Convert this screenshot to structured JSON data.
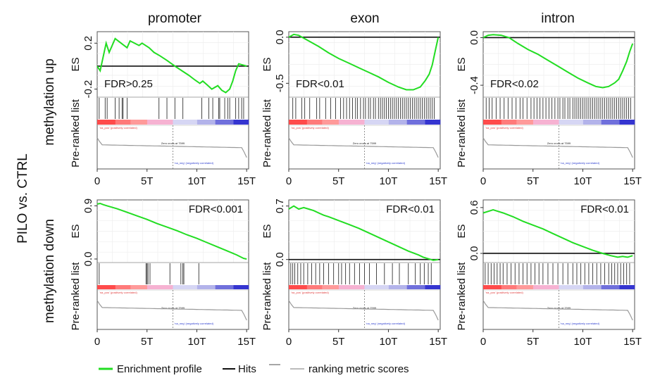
{
  "chart_data": {
    "type": "line",
    "left_label": "PILO vs. CTRL",
    "columns": [
      "promoter",
      "exon",
      "intron"
    ],
    "rows": [
      "methylation up",
      "methylation down"
    ],
    "es_label": "ES",
    "ranked_label": "Pre-ranked list",
    "pos_label": "'na_pos' (positively correlated)",
    "neg_label": "'na_neg' (negatively correlated)",
    "zero_cross_label": "Zero cross at 7599",
    "zero_cross": 7599,
    "x_ticks": [
      "0",
      "5T",
      "10T",
      "15T"
    ],
    "x_tick_values": [
      0,
      5000,
      10000,
      15000
    ],
    "xlim": [
      0,
      15200
    ],
    "legend": [
      "Enrichment profile",
      "Hits",
      "ranking metric scores"
    ],
    "colors": {
      "profile": "#22dd22",
      "hits": "#111111",
      "metric": "#bbbbbb"
    },
    "panels": [
      {
        "row": 0,
        "col": 0,
        "fdr": "FDR>0.25",
        "fdr_pos": "bottom-left",
        "ylim": [
          -0.27,
          0.3
        ],
        "yticks": [
          0.2,
          -0.2
        ],
        "ytick_labels": [
          "0.2",
          "-0.2"
        ],
        "zero_line": true,
        "es": [
          [
            0,
            0.0
          ],
          [
            300,
            -0.04
          ],
          [
            900,
            0.2
          ],
          [
            1200,
            0.12
          ],
          [
            1800,
            0.24
          ],
          [
            2400,
            0.2
          ],
          [
            3000,
            0.16
          ],
          [
            3300,
            0.22
          ],
          [
            4200,
            0.18
          ],
          [
            4500,
            0.2
          ],
          [
            5200,
            0.16
          ],
          [
            5700,
            0.12
          ],
          [
            6300,
            0.09
          ],
          [
            7000,
            0.05
          ],
          [
            7800,
            0.0
          ],
          [
            8500,
            -0.04
          ],
          [
            9200,
            -0.08
          ],
          [
            9800,
            -0.12
          ],
          [
            10300,
            -0.15
          ],
          [
            10600,
            -0.13
          ],
          [
            11000,
            -0.16
          ],
          [
            11500,
            -0.2
          ],
          [
            12100,
            -0.17
          ],
          [
            12500,
            -0.21
          ],
          [
            12900,
            -0.23
          ],
          [
            13300,
            -0.2
          ],
          [
            13600,
            -0.13
          ],
          [
            13900,
            -0.04
          ],
          [
            14200,
            0.02
          ],
          [
            15000,
            0.0
          ]
        ],
        "hits": [
          200,
          800,
          1000,
          1800,
          2200,
          2500,
          2600,
          3000,
          6200,
          7000,
          7800,
          8600,
          10500,
          11200,
          11600,
          12200,
          12300,
          12800,
          13100,
          13300,
          13900,
          14200,
          14500,
          14700
        ]
      },
      {
        "row": 0,
        "col": 1,
        "fdr": "FDR<0.01",
        "fdr_pos": "bottom-left",
        "ylim": [
          -0.65,
          0.06
        ],
        "yticks": [
          0.0,
          -0.5
        ],
        "ytick_labels": [
          "0.0",
          "-0.5"
        ],
        "zero_line": true,
        "es": [
          [
            0,
            0.0
          ],
          [
            500,
            0.03
          ],
          [
            1000,
            0.02
          ],
          [
            2000,
            -0.04
          ],
          [
            3000,
            -0.1
          ],
          [
            4000,
            -0.17
          ],
          [
            5000,
            -0.23
          ],
          [
            6000,
            -0.28
          ],
          [
            7000,
            -0.33
          ],
          [
            8000,
            -0.38
          ],
          [
            9000,
            -0.43
          ],
          [
            10000,
            -0.49
          ],
          [
            11000,
            -0.54
          ],
          [
            11800,
            -0.57
          ],
          [
            12500,
            -0.57
          ],
          [
            13200,
            -0.54
          ],
          [
            13700,
            -0.47
          ],
          [
            14100,
            -0.4
          ],
          [
            14400,
            -0.3
          ],
          [
            14700,
            -0.15
          ],
          [
            15000,
            0.0
          ]
        ],
        "hits": [
          400,
          700,
          1300,
          1600,
          2100,
          2800,
          3100,
          3700,
          4200,
          4700,
          5200,
          5500,
          5800,
          6100,
          6400,
          6700,
          6900,
          7200,
          7500,
          7700,
          8000,
          8200,
          8500,
          8700,
          9000,
          9200,
          9400,
          9600,
          9800,
          10000,
          10200,
          10400,
          10600,
          10800,
          11000,
          11200,
          11400,
          11600,
          11800,
          12000,
          12200,
          12400,
          12600,
          12800,
          13000,
          13200,
          13400,
          13600,
          13800,
          14000,
          14200,
          14400,
          14600
        ]
      },
      {
        "row": 0,
        "col": 2,
        "fdr": "FDR<0.02",
        "fdr_pos": "bottom-left",
        "ylim": [
          -0.5,
          0.05
        ],
        "yticks": [
          0.0,
          -0.4
        ],
        "ytick_labels": [
          "0.0",
          "-0.4"
        ],
        "zero_line": true,
        "es": [
          [
            0,
            0.0
          ],
          [
            500,
            0.02
          ],
          [
            1000,
            0.025
          ],
          [
            1800,
            0.02
          ],
          [
            2600,
            0.0
          ],
          [
            3500,
            -0.05
          ],
          [
            4500,
            -0.1
          ],
          [
            5500,
            -0.14
          ],
          [
            6500,
            -0.19
          ],
          [
            7500,
            -0.24
          ],
          [
            8500,
            -0.29
          ],
          [
            9500,
            -0.34
          ],
          [
            10500,
            -0.38
          ],
          [
            11300,
            -0.41
          ],
          [
            12000,
            -0.42
          ],
          [
            12600,
            -0.41
          ],
          [
            13200,
            -0.38
          ],
          [
            13600,
            -0.35
          ],
          [
            14000,
            -0.28
          ],
          [
            14400,
            -0.2
          ],
          [
            14700,
            -0.12
          ],
          [
            15000,
            -0.05
          ]
        ],
        "hits": [
          300,
          600,
          900,
          1300,
          1700,
          2100,
          2500,
          2900,
          3300,
          3700,
          4000,
          4400,
          4800,
          5100,
          5400,
          5700,
          6000,
          6300,
          6600,
          6900,
          7200,
          7500,
          7700,
          8000,
          8200,
          8500,
          8700,
          9000,
          9200,
          9400,
          9600,
          9800,
          10000,
          10200,
          10400,
          10600,
          10800,
          11000,
          11200,
          11400,
          11600,
          11800,
          12000,
          12200,
          12400,
          12600,
          12800,
          13000,
          13200,
          13400,
          13600,
          13800,
          14000,
          14200,
          14400,
          14600,
          14800
        ]
      },
      {
        "row": 1,
        "col": 0,
        "fdr": "FDR<0.001",
        "fdr_pos": "top-right",
        "ylim": [
          -0.06,
          1.0
        ],
        "yticks": [
          0.9,
          0.0
        ],
        "ytick_labels": [
          "0.9",
          "0.0"
        ],
        "zero_line": false,
        "es": [
          [
            0,
            0.93
          ],
          [
            300,
            0.94
          ],
          [
            600,
            0.92
          ],
          [
            1000,
            0.9
          ],
          [
            2000,
            0.85
          ],
          [
            3000,
            0.79
          ],
          [
            4000,
            0.73
          ],
          [
            5000,
            0.67
          ],
          [
            6000,
            0.6
          ],
          [
            7000,
            0.54
          ],
          [
            8000,
            0.48
          ],
          [
            9000,
            0.41
          ],
          [
            10000,
            0.35
          ],
          [
            11000,
            0.28
          ],
          [
            12000,
            0.21
          ],
          [
            13000,
            0.14
          ],
          [
            14000,
            0.07
          ],
          [
            14700,
            0.01
          ],
          [
            15000,
            0.0
          ]
        ],
        "hits": [
          200,
          4900,
          5000,
          5100,
          5300,
          7300,
          8400,
          8600,
          8700,
          10200
        ]
      },
      {
        "row": 1,
        "col": 1,
        "fdr": "FDR<0.01",
        "fdr_pos": "top-right",
        "ylim": [
          -0.04,
          0.78
        ],
        "yticks": [
          0.7,
          0.0
        ],
        "ytick_labels": [
          "0.7",
          "0.0"
        ],
        "zero_line": true,
        "es": [
          [
            0,
            0.66
          ],
          [
            500,
            0.7
          ],
          [
            1000,
            0.66
          ],
          [
            1500,
            0.68
          ],
          [
            2000,
            0.66
          ],
          [
            2500,
            0.64
          ],
          [
            3000,
            0.61
          ],
          [
            3500,
            0.58
          ],
          [
            4000,
            0.56
          ],
          [
            5000,
            0.51
          ],
          [
            6000,
            0.46
          ],
          [
            7000,
            0.41
          ],
          [
            8000,
            0.35
          ],
          [
            9000,
            0.29
          ],
          [
            10000,
            0.23
          ],
          [
            11000,
            0.17
          ],
          [
            12000,
            0.11
          ],
          [
            13000,
            0.06
          ],
          [
            13500,
            0.03
          ],
          [
            14000,
            0.01
          ],
          [
            14500,
            -0.01
          ],
          [
            15000,
            0.0
          ]
        ],
        "hits": [
          200,
          400,
          600,
          900,
          1200,
          1500,
          1900,
          2300,
          2700,
          3100,
          3500,
          4000,
          4500,
          5000,
          5300,
          5700,
          6100,
          6600,
          7100,
          7600,
          8100,
          8800,
          9600,
          10400,
          11100,
          12000,
          12700,
          13200,
          13600,
          14000,
          14300
        ]
      },
      {
        "row": 1,
        "col": 2,
        "fdr": "FDR<0.01",
        "fdr_pos": "top-right",
        "ylim": [
          -0.12,
          0.7
        ],
        "yticks": [
          0.6,
          0.0
        ],
        "ytick_labels": [
          "0.6",
          "0.0"
        ],
        "zero_line": true,
        "es": [
          [
            0,
            0.53
          ],
          [
            500,
            0.55
          ],
          [
            1000,
            0.57
          ],
          [
            1500,
            0.55
          ],
          [
            2000,
            0.53
          ],
          [
            3000,
            0.48
          ],
          [
            4000,
            0.42
          ],
          [
            5000,
            0.37
          ],
          [
            6000,
            0.32
          ],
          [
            7000,
            0.26
          ],
          [
            8000,
            0.2
          ],
          [
            9000,
            0.14
          ],
          [
            10000,
            0.09
          ],
          [
            11000,
            0.04
          ],
          [
            12000,
            0.0
          ],
          [
            12800,
            -0.03
          ],
          [
            13500,
            -0.05
          ],
          [
            14000,
            -0.04
          ],
          [
            14500,
            -0.05
          ],
          [
            15000,
            -0.03
          ]
        ],
        "hits": [
          200,
          500,
          800,
          1100,
          1400,
          1700,
          2000,
          2400,
          2800,
          3200,
          3600,
          4000,
          4400,
          4800,
          5200,
          5600,
          6000,
          6500,
          7000,
          7500,
          8000,
          8500,
          9000,
          9400,
          9800,
          10200,
          10600,
          11000,
          11400,
          11800,
          12200,
          12600,
          12900,
          13200,
          13500,
          13800,
          14100,
          14400,
          14700
        ]
      }
    ]
  }
}
